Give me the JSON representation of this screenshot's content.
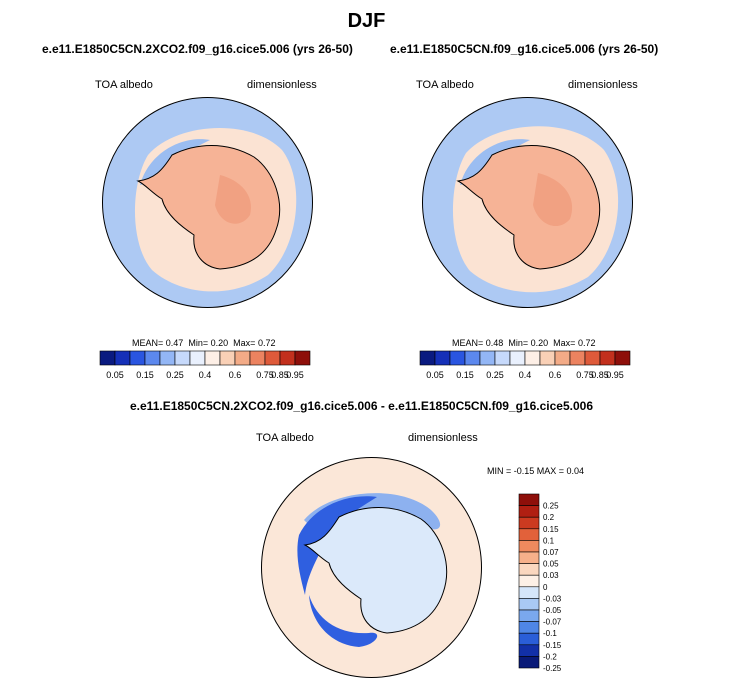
{
  "season_title": "DJF",
  "panels": [
    {
      "case_title": "e.e11.E1850C5CN.2XCO2.f09_g16.cice5.006 (yrs 26-50)",
      "variable": "TOA albedo",
      "units": "dimensionless",
      "stats": {
        "mean_label": "MEAN=",
        "mean": "0.47",
        "min_label": "Min=",
        "min": "0.20",
        "max_label": "Max=",
        "max": "0.72"
      }
    },
    {
      "case_title": "e.e11.E1850C5CN.f09_g16.cice5.006 (yrs 26-50)",
      "variable": "TOA albedo",
      "units": "dimensionless",
      "stats": {
        "mean_label": "MEAN=",
        "mean": "0.48",
        "min_label": "Min=",
        "min": "0.20",
        "max_label": "Max=",
        "max": "0.72"
      }
    }
  ],
  "diff_panel": {
    "case_title": "e.e11.E1850C5CN.2XCO2.f09_g16.cice5.006 - e.e11.E1850C5CN.f09_g16.cice5.006",
    "variable": "TOA albedo",
    "units": "dimensionless",
    "minmax": "MIN =  -0.15 MAX =   0.04"
  },
  "chart_data": [
    {
      "type": "heatmap",
      "projection": "south polar stereographic",
      "title": "e.e11.E1850C5CN.2XCO2.f09_g16.cice5.006 (yrs 26-50)",
      "variable": "TOA albedo",
      "units": "dimensionless",
      "mean": 0.47,
      "min": 0.2,
      "max": 0.72,
      "colorbar_ticks": [
        "0.05",
        "0.15",
        "0.25",
        "0.4",
        "0.6",
        "0.75",
        "0.85",
        "0.95"
      ]
    },
    {
      "type": "heatmap",
      "projection": "south polar stereographic",
      "title": "e.e11.E1850C5CN.f09_g16.cice5.006 (yrs 26-50)",
      "variable": "TOA albedo",
      "units": "dimensionless",
      "mean": 0.48,
      "min": 0.2,
      "max": 0.72,
      "colorbar_ticks": [
        "0.05",
        "0.15",
        "0.25",
        "0.4",
        "0.6",
        "0.75",
        "0.85",
        "0.95"
      ]
    },
    {
      "type": "heatmap",
      "projection": "south polar stereographic",
      "title": "e.e11.E1850C5CN.2XCO2.f09_g16.cice5.006 - e.e11.E1850C5CN.f09_g16.cice5.006",
      "variable": "TOA albedo",
      "units": "dimensionless",
      "min": -0.15,
      "max": 0.04,
      "colorbar_ticks": [
        "0.25",
        "0.2",
        "0.15",
        "0.1",
        "0.07",
        "0.05",
        "0.03",
        "0",
        "-0.03",
        "-0.05",
        "-0.07",
        "-0.1",
        "-0.15",
        "-0.2",
        "-0.25"
      ]
    }
  ],
  "colors": {
    "abs_scale": [
      "#0a1a80",
      "#1530b8",
      "#2a55e0",
      "#5c88ee",
      "#93b6f5",
      "#c6d9fb",
      "#e9f0fd",
      "#fdefe6",
      "#f9d0b6",
      "#f3ab87",
      "#ec8360",
      "#de5a3a",
      "#c2301d",
      "#8e0f0a"
    ],
    "diff_scale": [
      "#8e0f0a",
      "#b01f12",
      "#cc3a20",
      "#e2613a",
      "#ef8a5e",
      "#f6b08a",
      "#fad7bf",
      "#fdf0e6",
      "#d5e6fa",
      "#a9c9f4",
      "#7aa8ee",
      "#4f86e6",
      "#2a5ed8",
      "#1230a8",
      "#091a78"
    ],
    "land_abs": "#f6b396",
    "land_abs_light": "#f1a182",
    "ring_abs": "#fbe3d3",
    "ocean_abs": "#adc9f3",
    "ocean_abs_dark": "#9bbdf1",
    "diff_bg": "#fbe7d8",
    "diff_land": "#dbe9fa",
    "diff_neg": "#2f5fe0",
    "diff_neg_light": "#8db1ef"
  }
}
